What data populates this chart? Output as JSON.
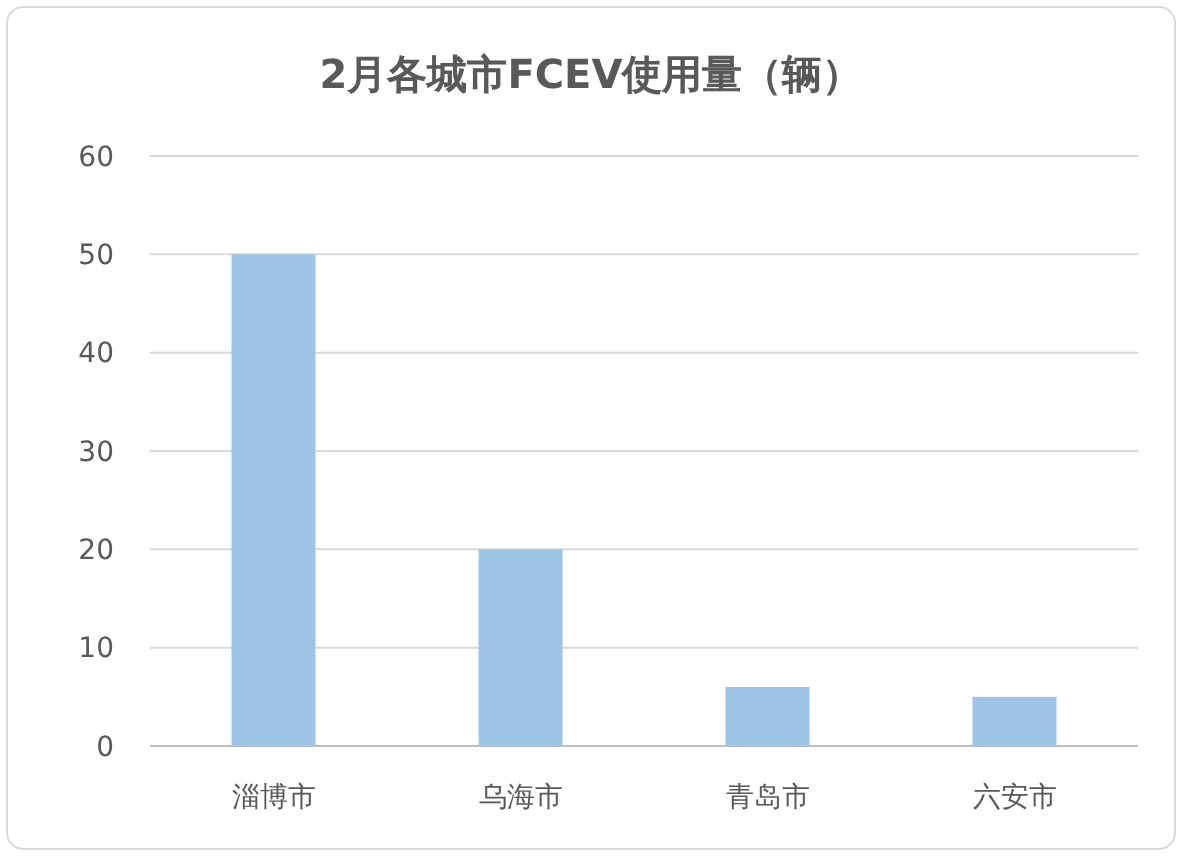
{
  "chart_data": {
    "type": "bar",
    "title": "2月各城市FCEV使用量（辆）",
    "categories": [
      "淄博市",
      "乌海市",
      "青岛市",
      "六安市"
    ],
    "values": [
      50,
      20,
      6,
      5
    ],
    "color": "#9dc3e6",
    "ylim": [
      0,
      60
    ],
    "yticks": [
      0,
      10,
      20,
      30,
      40,
      50,
      60
    ],
    "grid": "y"
  }
}
